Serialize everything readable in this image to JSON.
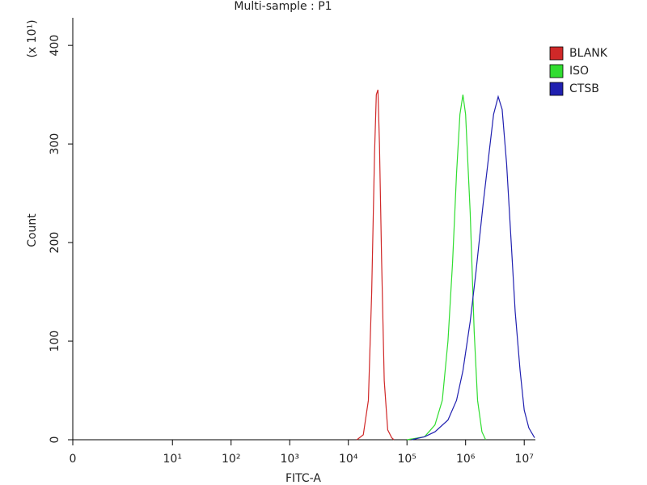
{
  "chart_data": {
    "type": "line",
    "title": "Multi-sample : P1",
    "x_label": "FITC-A",
    "y_label": "Count",
    "y_multiplier": "(x 10¹)",
    "xscale": "symlog",
    "linthresh": 10,
    "linscale": 1.7,
    "xlim": [
      0,
      15500000
    ],
    "ylim": [
      0,
      428
    ],
    "xticks": [
      0,
      {
        "value": 10,
        "label": "10¹"
      },
      {
        "value": 100,
        "label": "10²"
      },
      {
        "value": 1000,
        "label": "10³"
      },
      {
        "value": 10000,
        "label": "10⁴"
      },
      {
        "value": 100000,
        "label": "10⁵"
      },
      {
        "value": 1000000,
        "label": "10⁶"
      },
      {
        "value": 10000000,
        "label": "10⁷"
      }
    ],
    "yticks": [
      0,
      100,
      200,
      300,
      400
    ],
    "legend": "right",
    "series": [
      {
        "name": "BLANK",
        "color": "#d02828",
        "x": [
          14000,
          18000,
          22000,
          25000,
          28000,
          30000,
          32000,
          34000,
          37000,
          41000,
          47000,
          55000,
          60000
        ],
        "values": [
          0,
          5,
          40,
          150,
          290,
          350,
          355,
          300,
          180,
          60,
          10,
          2,
          0
        ]
      },
      {
        "name": "ISO",
        "color": "#30dd30",
        "x": [
          100000,
          200000,
          300000,
          400000,
          500000,
          600000,
          700000,
          800000,
          900000,
          1000000,
          1200000,
          1400000,
          1600000,
          1900000,
          2200000
        ],
        "values": [
          0,
          3,
          15,
          40,
          100,
          180,
          270,
          330,
          350,
          330,
          230,
          110,
          40,
          8,
          0
        ]
      },
      {
        "name": "CTSB",
        "color": "#2020b0",
        "x": [
          120000,
          200000,
          300000,
          500000,
          700000,
          900000,
          1200000,
          1500000,
          2000000,
          2500000,
          3000000,
          3600000,
          4200000,
          5000000,
          6000000,
          7000000,
          8500000,
          10000000,
          12000000,
          15000000
        ],
        "values": [
          0,
          3,
          8,
          20,
          40,
          70,
          120,
          170,
          240,
          290,
          330,
          348,
          335,
          280,
          200,
          130,
          70,
          30,
          12,
          2
        ]
      }
    ]
  }
}
